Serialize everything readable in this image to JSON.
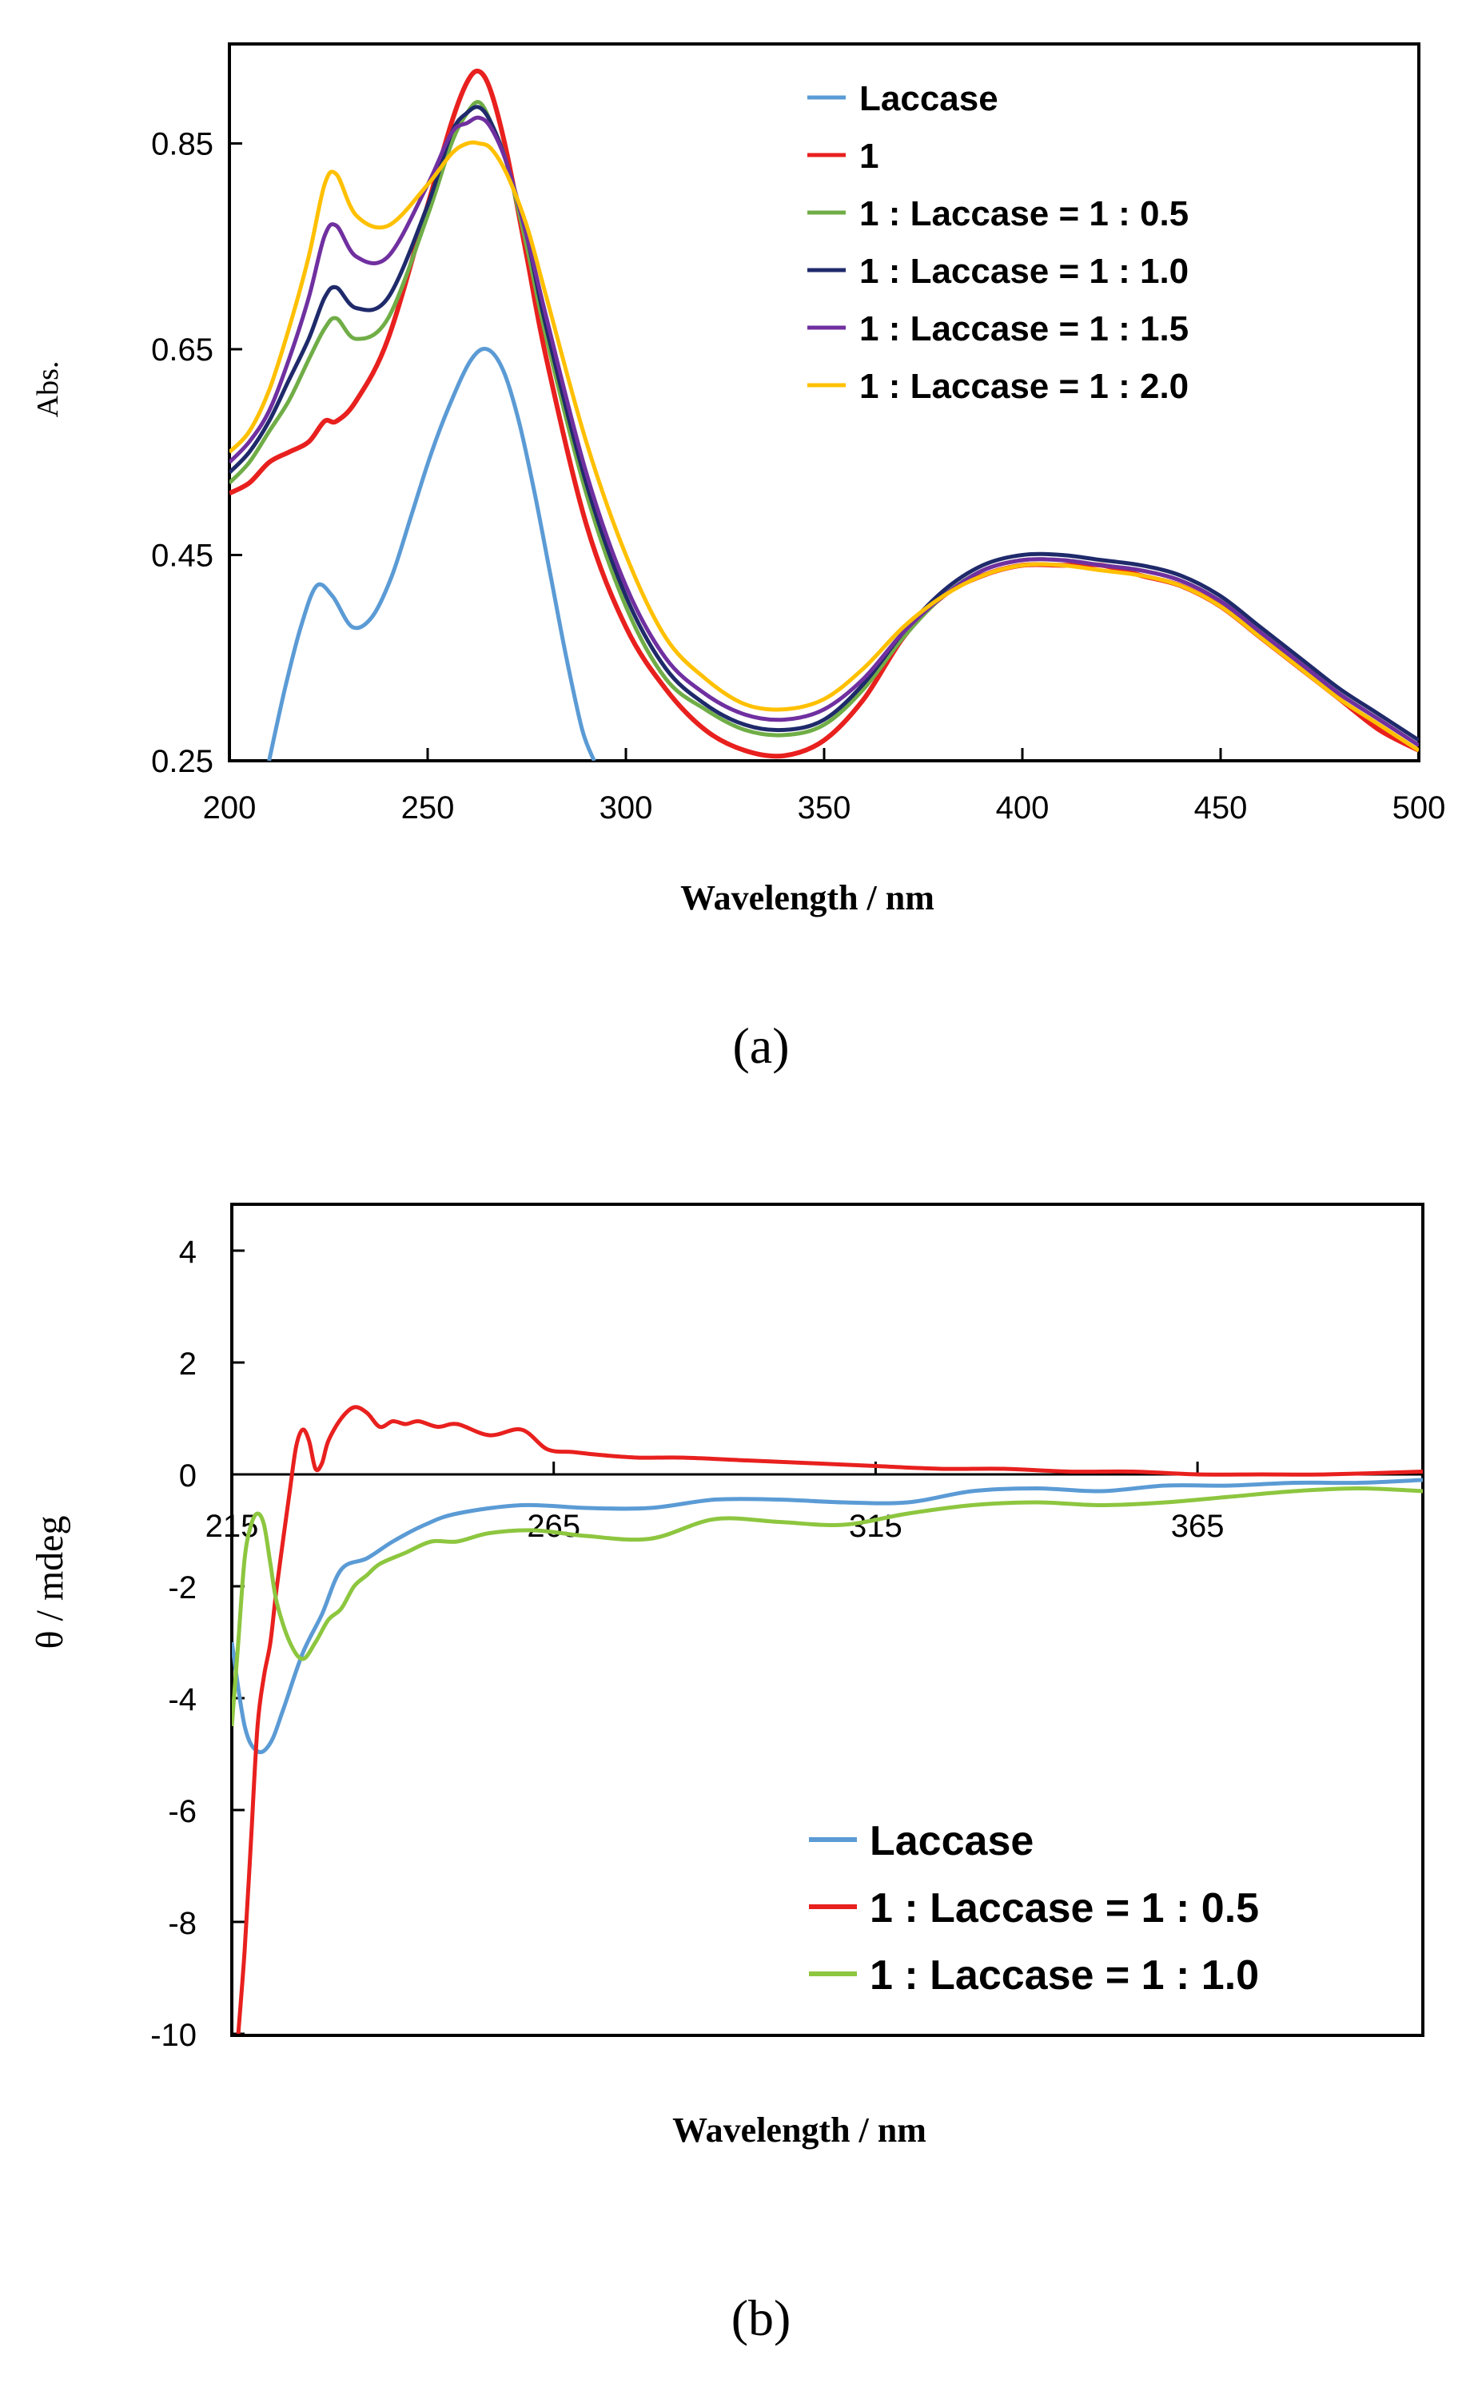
{
  "chart_data": [
    {
      "type": "line",
      "caption": "(a)",
      "xlabel": "Wavelength / nm",
      "ylabel": "Abs.",
      "xlim": [
        200,
        500
      ],
      "ylim": [
        0.25,
        0.95
      ],
      "xticks": [
        200,
        250,
        300,
        350,
        400,
        450,
        500
      ],
      "xtick_labels": [
        "200",
        "250",
        "300",
        "350",
        "400",
        "450",
        "500"
      ],
      "yticks": [
        0.25,
        0.45,
        0.65,
        0.85
      ],
      "ytick_labels": [
        "0.25",
        "0.45",
        "0.65",
        "0.85"
      ],
      "legend_position": "top-right",
      "series": [
        {
          "name": "Laccase",
          "color": "#5b9bd5",
          "x": [
            210,
            214,
            218,
            222,
            226,
            231,
            236,
            241,
            246,
            251,
            256,
            261,
            265,
            269,
            273,
            277,
            281,
            285,
            289,
            292
          ],
          "y": [
            0.25,
            0.32,
            0.38,
            0.42,
            0.41,
            0.38,
            0.39,
            0.43,
            0.49,
            0.55,
            0.6,
            0.64,
            0.65,
            0.63,
            0.58,
            0.51,
            0.43,
            0.35,
            0.28,
            0.25
          ]
        },
        {
          "name": "1",
          "color": "#e8201e",
          "x": [
            200,
            205,
            210,
            215,
            220,
            224,
            227,
            232,
            240,
            250,
            256,
            260,
            263,
            266,
            270,
            275,
            280,
            290,
            300,
            310,
            320,
            330,
            340,
            350,
            360,
            370,
            380,
            390,
            400,
            410,
            420,
            430,
            440,
            450,
            460,
            470,
            480,
            490,
            500
          ],
          "y": [
            0.51,
            0.52,
            0.54,
            0.55,
            0.56,
            0.58,
            0.58,
            0.6,
            0.66,
            0.79,
            0.87,
            0.91,
            0.92,
            0.9,
            0.84,
            0.74,
            0.64,
            0.48,
            0.38,
            0.32,
            0.28,
            0.26,
            0.255,
            0.27,
            0.31,
            0.37,
            0.41,
            0.43,
            0.44,
            0.44,
            0.44,
            0.43,
            0.42,
            0.4,
            0.37,
            0.34,
            0.31,
            0.28,
            0.26
          ]
        },
        {
          "name": "1 : Laccase = 1 : 0.5",
          "color": "#70ad47",
          "x": [
            200,
            205,
            210,
            215,
            220,
            224,
            227,
            232,
            240,
            250,
            256,
            260,
            263,
            266,
            270,
            275,
            280,
            290,
            300,
            310,
            320,
            330,
            340,
            350,
            360,
            370,
            380,
            390,
            400,
            410,
            420,
            430,
            440,
            450,
            460,
            470,
            480,
            490,
            500
          ],
          "y": [
            0.52,
            0.54,
            0.57,
            0.6,
            0.64,
            0.67,
            0.68,
            0.66,
            0.68,
            0.78,
            0.85,
            0.88,
            0.89,
            0.87,
            0.83,
            0.75,
            0.66,
            0.51,
            0.4,
            0.33,
            0.3,
            0.28,
            0.275,
            0.285,
            0.32,
            0.37,
            0.41,
            0.435,
            0.445,
            0.445,
            0.44,
            0.435,
            0.425,
            0.405,
            0.375,
            0.345,
            0.315,
            0.29,
            0.265
          ]
        },
        {
          "name": "1 : Laccase = 1 : 1.0",
          "color": "#1f2a6b",
          "x": [
            200,
            205,
            210,
            215,
            220,
            224,
            227,
            232,
            240,
            250,
            256,
            260,
            263,
            266,
            270,
            275,
            280,
            290,
            300,
            310,
            320,
            330,
            340,
            350,
            360,
            370,
            380,
            390,
            400,
            410,
            420,
            430,
            440,
            450,
            460,
            470,
            480,
            490,
            500
          ],
          "y": [
            0.53,
            0.55,
            0.58,
            0.62,
            0.66,
            0.7,
            0.71,
            0.69,
            0.7,
            0.79,
            0.86,
            0.88,
            0.885,
            0.87,
            0.83,
            0.76,
            0.67,
            0.52,
            0.41,
            0.34,
            0.305,
            0.285,
            0.28,
            0.29,
            0.325,
            0.375,
            0.415,
            0.44,
            0.45,
            0.45,
            0.445,
            0.44,
            0.43,
            0.41,
            0.38,
            0.35,
            0.32,
            0.295,
            0.27
          ]
        },
        {
          "name": "1 : Laccase = 1 : 1.5",
          "color": "#7030a0",
          "x": [
            200,
            205,
            210,
            215,
            220,
            224,
            227,
            232,
            240,
            250,
            256,
            260,
            263,
            266,
            270,
            275,
            280,
            290,
            300,
            310,
            320,
            330,
            340,
            350,
            360,
            370,
            380,
            390,
            400,
            410,
            420,
            430,
            440,
            450,
            460,
            470,
            480,
            490,
            500
          ],
          "y": [
            0.54,
            0.56,
            0.59,
            0.64,
            0.7,
            0.76,
            0.77,
            0.74,
            0.74,
            0.81,
            0.86,
            0.87,
            0.875,
            0.865,
            0.83,
            0.76,
            0.68,
            0.53,
            0.42,
            0.35,
            0.315,
            0.295,
            0.29,
            0.3,
            0.33,
            0.375,
            0.41,
            0.435,
            0.445,
            0.445,
            0.44,
            0.435,
            0.425,
            0.405,
            0.375,
            0.345,
            0.315,
            0.29,
            0.265
          ]
        },
        {
          "name": "1 : Laccase = 1 : 2.0",
          "color": "#ffc000",
          "x": [
            200,
            205,
            210,
            215,
            220,
            224,
            227,
            232,
            240,
            250,
            256,
            260,
            263,
            266,
            270,
            275,
            280,
            290,
            300,
            310,
            320,
            330,
            340,
            350,
            360,
            370,
            380,
            390,
            400,
            410,
            420,
            430,
            440,
            450,
            460,
            470,
            480,
            490,
            500
          ],
          "y": [
            0.55,
            0.57,
            0.61,
            0.67,
            0.74,
            0.81,
            0.82,
            0.78,
            0.77,
            0.81,
            0.84,
            0.85,
            0.85,
            0.845,
            0.82,
            0.77,
            0.7,
            0.56,
            0.45,
            0.37,
            0.33,
            0.305,
            0.3,
            0.31,
            0.34,
            0.38,
            0.41,
            0.43,
            0.44,
            0.44,
            0.435,
            0.43,
            0.42,
            0.4,
            0.37,
            0.34,
            0.31,
            0.285,
            0.26
          ]
        }
      ]
    },
    {
      "type": "line",
      "caption": "(b)",
      "xlabel": "Wavelength / nm",
      "ylabel": "θ  / mdeg",
      "xlim": [
        215,
        400
      ],
      "ylim": [
        -10,
        5
      ],
      "xticks": [
        215,
        265,
        315,
        365
      ],
      "xtick_labels": [
        "215",
        "265",
        "315",
        "365"
      ],
      "yticks": [
        4,
        2,
        0,
        -2,
        -4,
        -6,
        -8,
        -10
      ],
      "ytick_labels": [
        "4",
        "2",
        "0",
        "-2",
        "-4",
        "-6",
        "-8",
        "-10"
      ],
      "legend_position": "bottom-right",
      "series": [
        {
          "name": "Laccase",
          "color": "#5b9bd5",
          "x": [
            215,
            217,
            219,
            221,
            223,
            226,
            229,
            232,
            236,
            240,
            245,
            250,
            260,
            270,
            280,
            290,
            300,
            310,
            320,
            330,
            340,
            350,
            360,
            370,
            380,
            390,
            400
          ],
          "y": [
            -3.0,
            -4.5,
            -4.95,
            -4.8,
            -4.2,
            -3.2,
            -2.5,
            -1.7,
            -1.5,
            -1.2,
            -0.9,
            -0.7,
            -0.55,
            -0.6,
            -0.6,
            -0.45,
            -0.45,
            -0.5,
            -0.5,
            -0.3,
            -0.25,
            -0.3,
            -0.2,
            -0.2,
            -0.15,
            -0.15,
            -0.1
          ]
        },
        {
          "name": "1 : Laccase = 1 : 0.5",
          "color": "#e8201e",
          "x": [
            216,
            217,
            218,
            219,
            220,
            221,
            222,
            224,
            225,
            226,
            227,
            228,
            229,
            230,
            232,
            234,
            236,
            238,
            240,
            242,
            244,
            247,
            250,
            255,
            260,
            264,
            268,
            272,
            278,
            285,
            295,
            305,
            315,
            325,
            335,
            345,
            355,
            365,
            375,
            385,
            400
          ],
          "y": [
            -10.0,
            -8.5,
            -6.5,
            -4.5,
            -3.6,
            -3.0,
            -2.0,
            -0.3,
            0.5,
            0.8,
            0.6,
            0.1,
            0.2,
            0.6,
            1.0,
            1.2,
            1.1,
            0.85,
            0.95,
            0.9,
            0.95,
            0.85,
            0.9,
            0.7,
            0.8,
            0.45,
            0.4,
            0.35,
            0.3,
            0.3,
            0.25,
            0.2,
            0.15,
            0.1,
            0.1,
            0.05,
            0.05,
            0.0,
            0.0,
            0.0,
            0.05
          ]
        },
        {
          "name": "1 : Laccase = 1 : 1.0",
          "color": "#8dc63f",
          "x": [
            215,
            216,
            217,
            218,
            219,
            220,
            221,
            222,
            224,
            226,
            228,
            230,
            232,
            234,
            236,
            238,
            242,
            246,
            250,
            255,
            262,
            270,
            280,
            290,
            300,
            310,
            320,
            330,
            340,
            350,
            360,
            370,
            380,
            390,
            400
          ],
          "y": [
            -4.5,
            -3.0,
            -1.5,
            -0.9,
            -0.7,
            -0.9,
            -1.6,
            -2.3,
            -3.0,
            -3.3,
            -3.0,
            -2.6,
            -2.4,
            -2.0,
            -1.8,
            -1.6,
            -1.4,
            -1.2,
            -1.2,
            -1.05,
            -1.0,
            -1.1,
            -1.15,
            -0.8,
            -0.85,
            -0.9,
            -0.7,
            -0.55,
            -0.5,
            -0.55,
            -0.5,
            -0.4,
            -0.3,
            -0.25,
            -0.3
          ]
        }
      ]
    }
  ]
}
